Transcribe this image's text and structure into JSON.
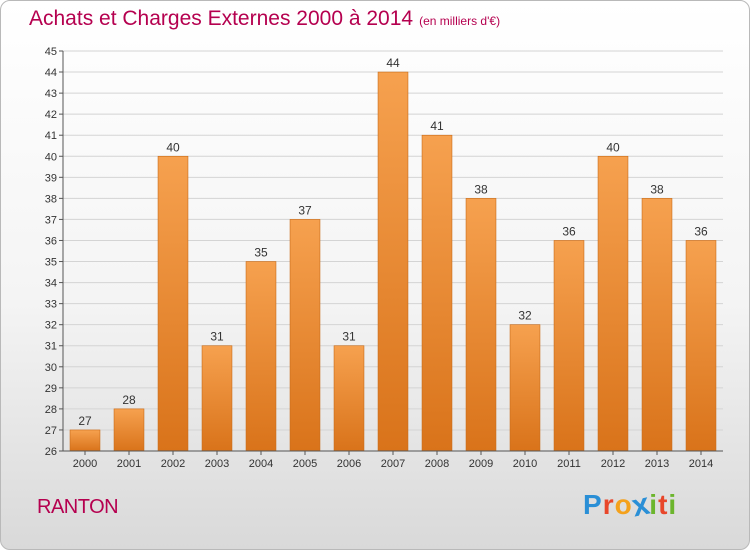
{
  "header": {
    "title": "Achats et Charges Externes 2000 à 2014",
    "unit_note": "(en milliers d'€)"
  },
  "footer": {
    "commune": "RANTON",
    "brand_letters": [
      "P",
      "r",
      "o",
      "x",
      "i",
      "t",
      "i"
    ],
    "brand_colors": [
      "#2a8fd6",
      "#e8462a",
      "#f4a11c",
      "#2a8fd6",
      "#6cb52d",
      "#e8462a",
      "#6cb52d"
    ]
  },
  "colors": {
    "bar_light": "#f6a14f",
    "bar_dark": "#d9731a",
    "accent": "#b5004f",
    "grid": "#d4d4d4"
  },
  "chart_data": {
    "type": "bar",
    "title": "Achats et Charges Externes 2000 à 2014",
    "subtitle": "(en milliers d'€)",
    "xlabel": "",
    "ylabel": "",
    "categories": [
      "2000",
      "2001",
      "2002",
      "2003",
      "2004",
      "2005",
      "2006",
      "2007",
      "2008",
      "2009",
      "2010",
      "2011",
      "2012",
      "2013",
      "2014"
    ],
    "values": [
      27,
      28,
      40,
      31,
      35,
      37,
      31,
      44,
      41,
      38,
      32,
      36,
      40,
      38,
      36
    ],
    "ylim": [
      26,
      45
    ],
    "yticks": [
      26,
      27,
      28,
      29,
      30,
      31,
      32,
      33,
      34,
      35,
      36,
      37,
      38,
      39,
      40,
      41,
      42,
      43,
      44,
      45
    ],
    "grid": true,
    "data_labels": true
  }
}
